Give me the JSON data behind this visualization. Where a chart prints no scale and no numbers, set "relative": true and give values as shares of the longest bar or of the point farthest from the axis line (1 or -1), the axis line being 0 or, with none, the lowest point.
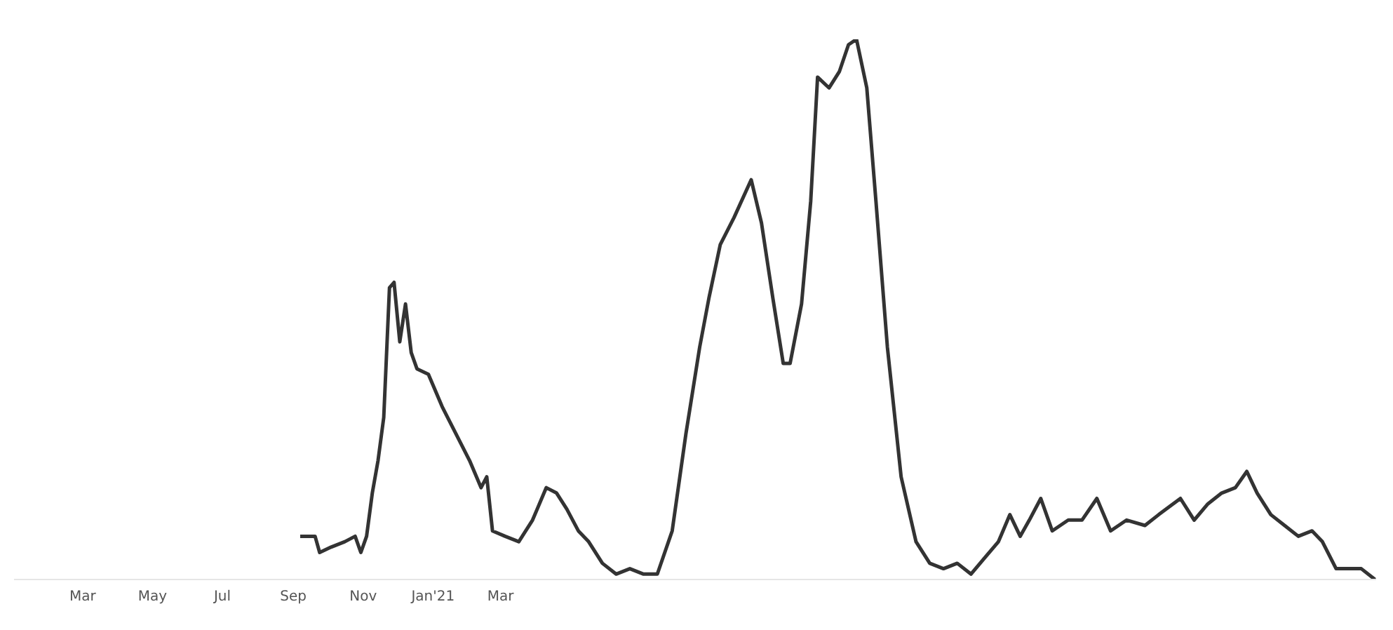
{
  "chart_data": {
    "type": "line",
    "relative": true,
    "tick_labels": "x",
    "marker": "none",
    "line_style": "solid",
    "xlim": [
      "2020-01-01",
      "2023-04-05"
    ],
    "xticks": [
      {
        "value": "2020-03-01",
        "label": "Mar"
      },
      {
        "value": "2020-05-01",
        "label": "May"
      },
      {
        "value": "2020-07-01",
        "label": "Jul"
      },
      {
        "value": "2020-09-01",
        "label": "Sep"
      },
      {
        "value": "2020-11-01",
        "label": "Nov"
      },
      {
        "value": "2021-01-01",
        "label": "Jan'21"
      },
      {
        "value": "2021-03-01",
        "label": "Mar"
      }
    ],
    "x": [
      "2020-09-07",
      "2020-09-12",
      "2020-09-20",
      "2020-09-24",
      "2020-10-04",
      "2020-10-16",
      "2020-10-25",
      "2020-10-30",
      "2020-11-04",
      "2020-11-09",
      "2020-11-14",
      "2020-11-19",
      "2020-11-24",
      "2020-11-28",
      "2020-12-03",
      "2020-12-08",
      "2020-12-13",
      "2020-12-18",
      "2020-12-28",
      "2021-01-09",
      "2021-01-21",
      "2021-02-02",
      "2021-02-12",
      "2021-02-17",
      "2021-02-22",
      "2021-03-05",
      "2021-03-17",
      "2021-03-29",
      "2021-04-10",
      "2021-04-19",
      "2021-04-28",
      "2021-05-08",
      "2021-05-17",
      "2021-05-29",
      "2021-06-10",
      "2021-06-22",
      "2021-07-04",
      "2021-07-16",
      "2021-07-29",
      "2021-08-10",
      "2021-08-22",
      "2021-08-30",
      "2021-09-09",
      "2021-09-21",
      "2021-10-06",
      "2021-10-15",
      "2021-10-25",
      "2021-11-03",
      "2021-11-09",
      "2021-11-19",
      "2021-11-27",
      "2021-12-03",
      "2021-12-13",
      "2021-12-22",
      "2021-12-30",
      "2022-01-06",
      "2022-01-15",
      "2022-01-23",
      "2022-02-02",
      "2022-02-14",
      "2022-02-27",
      "2022-03-11",
      "2022-03-23",
      "2022-04-04",
      "2022-04-16",
      "2022-04-28",
      "2022-05-10",
      "2022-05-20",
      "2022-05-29",
      "2022-06-06",
      "2022-06-16",
      "2022-06-26",
      "2022-07-10",
      "2022-07-22",
      "2022-08-04",
      "2022-08-16",
      "2022-08-30",
      "2022-09-15",
      "2022-09-27",
      "2022-10-16",
      "2022-10-28",
      "2022-11-09",
      "2022-11-21",
      "2022-12-03",
      "2022-12-13",
      "2022-12-22",
      "2023-01-03",
      "2023-01-15",
      "2023-01-27",
      "2023-02-08",
      "2023-02-17",
      "2023-03-01",
      "2023-03-13",
      "2023-03-23",
      "2023-04-04"
    ],
    "series": [
      {
        "color": "#333333",
        "values": [
          0.08,
          0.08,
          0.08,
          0.05,
          0.06,
          0.07,
          0.08,
          0.05,
          0.08,
          0.16,
          0.22,
          0.3,
          0.54,
          0.55,
          0.44,
          0.51,
          0.42,
          0.39,
          0.38,
          0.32,
          0.27,
          0.22,
          0.17,
          0.19,
          0.09,
          0.08,
          0.07,
          0.11,
          0.17,
          0.16,
          0.13,
          0.09,
          0.07,
          0.03,
          0.01,
          0.02,
          0.01,
          0.01,
          0.09,
          0.27,
          0.43,
          0.52,
          0.62,
          0.67,
          0.74,
          0.66,
          0.52,
          0.4,
          0.4,
          0.51,
          0.7,
          0.93,
          0.91,
          0.94,
          0.99,
          1,
          0.91,
          0.7,
          0.43,
          0.19,
          0.07,
          0.03,
          0.02,
          0.03,
          0.01,
          0.04,
          0.07,
          0.12,
          0.08,
          0.11,
          0.15,
          0.09,
          0.11,
          0.11,
          0.15,
          0.09,
          0.11,
          0.1,
          0.12,
          0.15,
          0.11,
          0.14,
          0.16,
          0.17,
          0.2,
          0.16,
          0.12,
          0.1,
          0.08,
          0.09,
          0.07,
          0.02,
          0.02,
          0.02,
          0
        ]
      }
    ]
  }
}
